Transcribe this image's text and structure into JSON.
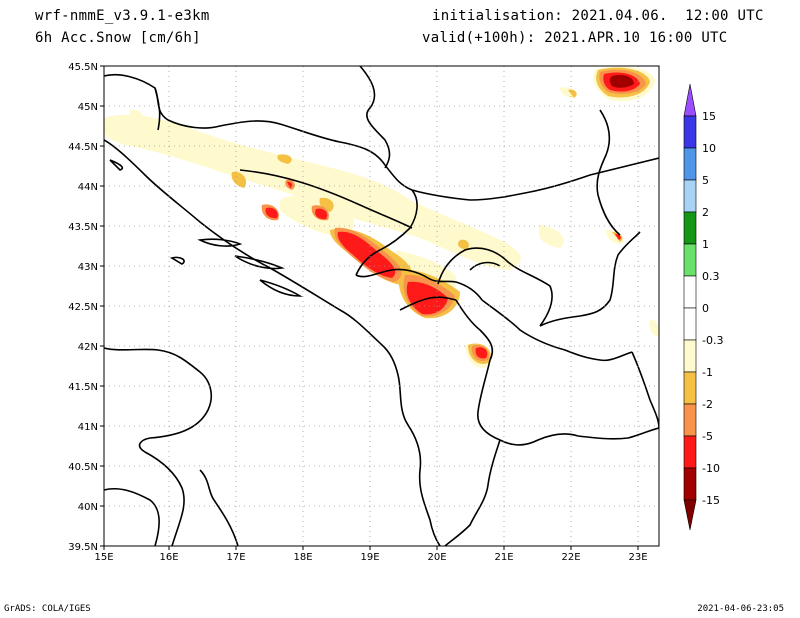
{
  "header": {
    "model": "wrf-nmmE_v3.9.1-e3km",
    "field": "6h Acc.Snow [cm/6h]",
    "initialisation": "initialisation: 2021.04.06.  12:00 UTC",
    "valid": "valid(+100h): 2021.APR.10 16:00 UTC"
  },
  "map": {
    "lon_range": [
      15,
      23.3
    ],
    "lat_range": [
      39.5,
      45.5
    ],
    "lon_ticks": [
      "15E",
      "16E",
      "17E",
      "18E",
      "19E",
      "20E",
      "21E",
      "22E",
      "23E"
    ],
    "lat_ticks": [
      "45.5N",
      "45N",
      "44.5N",
      "44N",
      "43.5N",
      "43N",
      "42.5N",
      "42N",
      "41.5N",
      "41N",
      "40.5N",
      "40N",
      "39.5N"
    ],
    "grid": "dotted"
  },
  "colorbar": {
    "labels": [
      "15",
      "10",
      "5",
      "2",
      "1",
      "0.3",
      "0",
      "-0.3",
      "-1",
      "-2",
      "-5",
      "-10",
      "-15"
    ],
    "colors": [
      "#9b4dff",
      "#3b36e6",
      "#4f96e8",
      "#a7d3f5",
      "#169616",
      "#6be06b",
      "#ffffff",
      "#ffffff",
      "#fffacd",
      "#f5c145",
      "#f7934a",
      "#ff1a1a",
      "#d21515",
      "#a20000",
      "#800000"
    ]
  },
  "footer": {
    "left": "GrADS: COLA/IGES",
    "right": "2021-04-06-23:05"
  }
}
